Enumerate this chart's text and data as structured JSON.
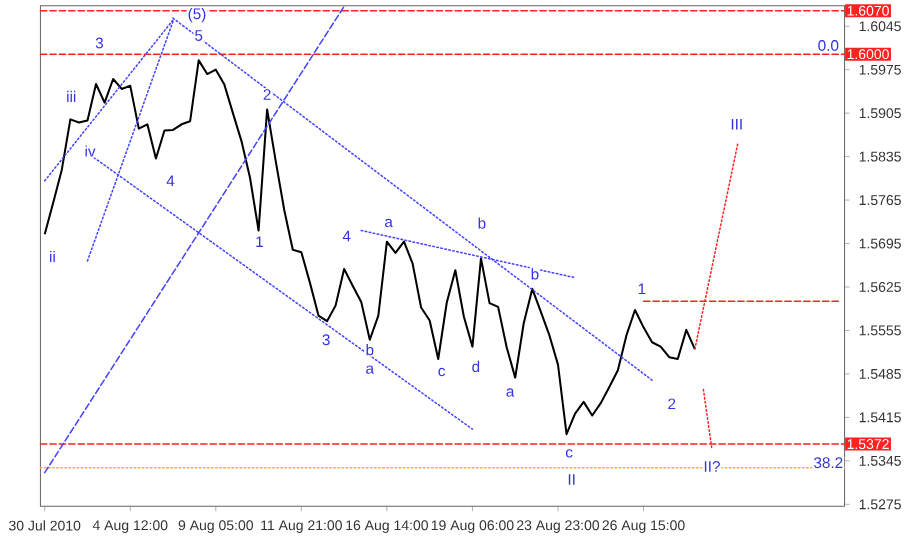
{
  "chart_data": {
    "type": "line",
    "ylim": [
      1.5272,
      1.6078
    ],
    "categories": [
      "30 Jul 2010",
      null,
      null,
      null,
      null,
      null,
      null,
      null,
      null,
      null,
      "4 Aug 12:00",
      null,
      null,
      null,
      null,
      null,
      null,
      null,
      null,
      null,
      "9 Aug 05:00",
      null,
      null,
      null,
      null,
      null,
      null,
      null,
      null,
      null,
      "11 Aug 21:00",
      null,
      null,
      null,
      null,
      null,
      null,
      null,
      null,
      null,
      "16 Aug 14:00",
      null,
      null,
      null,
      null,
      null,
      null,
      null,
      null,
      null,
      "19 Aug 06:00",
      null,
      null,
      null,
      null,
      null,
      null,
      null,
      null,
      null,
      "23 Aug 23:00",
      null,
      null,
      null,
      null,
      null,
      null,
      null,
      null,
      null,
      "26 Aug 15:00",
      null,
      null,
      null,
      null,
      null,
      null,
      null,
      null,
      null,
      null,
      null,
      null,
      null,
      null,
      null,
      null,
      null,
      null,
      null,
      null,
      null,
      null,
      null
    ],
    "yticks": [
      1.5275,
      1.5345,
      1.5415,
      1.5485,
      1.5555,
      1.5625,
      1.5695,
      1.5765,
      1.5835,
      1.5905,
      1.5975,
      1.6045
    ],
    "series": [
      {
        "color": "#000000",
        "line_style": "solid",
        "values": [
          1.571,
          1.5761,
          1.5814,
          1.5895,
          1.589,
          1.5893,
          1.5952,
          1.5922,
          1.596,
          1.5944,
          1.5949,
          1.588,
          1.5887,
          1.5832,
          1.5877,
          1.5878,
          1.5887,
          1.5892,
          1.599,
          1.5968,
          1.5975,
          1.5951,
          1.5905,
          1.586,
          1.5801,
          1.5716,
          1.5911,
          1.5828,
          1.5749,
          1.5685,
          1.5681,
          1.5632,
          1.5579,
          1.557,
          1.5595,
          1.5654,
          1.5627,
          1.5601,
          1.554,
          1.5579,
          1.5698,
          1.568,
          1.5698,
          1.5663,
          1.5592,
          1.5571,
          1.5509,
          1.56,
          1.5652,
          1.5577,
          1.5529,
          1.5671,
          1.5599,
          1.5593,
          1.5528,
          1.5479,
          1.5567,
          1.5622,
          1.5585,
          1.5547,
          1.55,
          1.5388,
          1.5421,
          1.544,
          1.5418,
          1.5438,
          1.5464,
          1.5491,
          1.5547,
          1.5588,
          1.556,
          1.5536,
          1.5529,
          1.5512,
          1.5509,
          1.5556,
          1.5525,
          null,
          null,
          null,
          null,
          null,
          null,
          null,
          null,
          null,
          null,
          null,
          null,
          null,
          null,
          null,
          null,
          null
        ]
      },
      {
        "color": "#4444ff",
        "line_style": "dashed",
        "values": [
          1.5326,
          null,
          null,
          null,
          null,
          null,
          null,
          null,
          null,
          null,
          null,
          null,
          null,
          null,
          null,
          null,
          null,
          null,
          null,
          null,
          null,
          null,
          null,
          null,
          null,
          null,
          null,
          null,
          null,
          null,
          null,
          null,
          null,
          null,
          null,
          1.6077,
          null,
          null,
          null,
          null,
          null,
          null,
          null,
          null,
          null,
          null,
          null,
          null,
          null,
          null,
          null,
          null,
          null,
          null,
          null,
          null,
          null,
          null,
          null,
          null,
          null,
          null,
          null,
          null,
          null,
          null,
          null,
          null,
          null,
          null,
          null,
          null,
          null,
          null,
          null,
          null,
          null,
          null,
          null,
          null,
          null,
          null,
          null,
          null,
          null,
          null,
          null,
          null,
          null,
          null,
          null,
          null,
          null,
          null
        ]
      },
      {
        "color": "#4444ff",
        "line_style": "dotted",
        "values": [
          1.5796,
          null,
          null,
          null,
          null,
          null,
          null,
          null,
          null,
          null,
          null,
          null,
          null,
          null,
          null,
          1.6055,
          null,
          null,
          null,
          null,
          null,
          null,
          null,
          null,
          null,
          null,
          null,
          null,
          null,
          null,
          null,
          null,
          null,
          null,
          null,
          null,
          null,
          null,
          null,
          null,
          null,
          null,
          null,
          null,
          null,
          null,
          null,
          null,
          null,
          null,
          null,
          null,
          null,
          null,
          null,
          null,
          null,
          null,
          null,
          null,
          null,
          null,
          null,
          null,
          null,
          null,
          null,
          null,
          null,
          null,
          null,
          null,
          null,
          null,
          null,
          null,
          null,
          null,
          null,
          null,
          null,
          null,
          null,
          null,
          null,
          null,
          null,
          null,
          null,
          null,
          null,
          null,
          null,
          null
        ]
      },
      {
        "color": "#4444ff",
        "line_style": "dotted",
        "values": [
          null,
          null,
          null,
          null,
          null,
          1.5667,
          null,
          null,
          null,
          null,
          null,
          null,
          null,
          null,
          null,
          1.6053,
          null,
          null,
          null,
          null,
          null,
          null,
          null,
          null,
          null,
          null,
          null,
          null,
          null,
          null,
          null,
          null,
          null,
          null,
          null,
          null,
          null,
          null,
          null,
          null,
          null,
          null,
          null,
          null,
          null,
          null,
          null,
          null,
          null,
          null,
          null,
          null,
          null,
          null,
          null,
          null,
          null,
          null,
          null,
          null,
          null,
          null,
          null,
          null,
          null,
          null,
          null,
          null,
          null,
          null,
          null,
          null,
          null,
          null,
          null,
          null,
          null,
          null,
          null,
          null,
          null,
          null,
          null,
          null,
          null,
          null,
          null,
          null,
          null,
          null,
          null,
          null,
          null,
          null
        ]
      },
      {
        "color": "#4444ff",
        "line_style": "dotted",
        "values": [
          null,
          null,
          null,
          null,
          null,
          1.5841,
          null,
          null,
          null,
          null,
          null,
          null,
          null,
          null,
          null,
          null,
          null,
          null,
          null,
          null,
          null,
          null,
          null,
          null,
          null,
          null,
          null,
          null,
          null,
          null,
          null,
          null,
          null,
          null,
          null,
          null,
          null,
          null,
          null,
          null,
          null,
          null,
          null,
          null,
          null,
          null,
          null,
          null,
          null,
          null,
          1.5396,
          null,
          null,
          null,
          null,
          null,
          null,
          null,
          null,
          null,
          null,
          null,
          null,
          null,
          null,
          null,
          null,
          null,
          null,
          null,
          null,
          null,
          null,
          null,
          null,
          null,
          null,
          null,
          null,
          null,
          null,
          null,
          null,
          null,
          null,
          null,
          null,
          null,
          null,
          null,
          null,
          null,
          null,
          null
        ]
      },
      {
        "color": "#4444ff",
        "line_style": "dotted",
        "values": [
          null,
          null,
          null,
          null,
          null,
          null,
          null,
          null,
          null,
          null,
          null,
          null,
          null,
          null,
          null,
          1.6058,
          null,
          null,
          null,
          null,
          null,
          null,
          null,
          null,
          null,
          null,
          null,
          null,
          null,
          null,
          null,
          null,
          null,
          null,
          null,
          null,
          null,
          null,
          null,
          null,
          null,
          null,
          null,
          null,
          null,
          null,
          null,
          null,
          null,
          null,
          null,
          null,
          null,
          null,
          null,
          null,
          null,
          null,
          null,
          null,
          null,
          null,
          null,
          null,
          null,
          null,
          null,
          null,
          null,
          null,
          null,
          1.5475,
          null,
          null,
          null,
          null,
          null,
          null,
          null,
          null,
          null,
          null,
          null,
          null,
          null,
          null,
          null,
          null,
          null,
          null,
          null,
          null,
          null,
          null
        ]
      },
      {
        "color": "#4444ff",
        "line_style": "dotted",
        "values": [
          null,
          null,
          null,
          null,
          null,
          null,
          null,
          null,
          null,
          null,
          null,
          null,
          null,
          null,
          null,
          null,
          null,
          null,
          null,
          null,
          null,
          null,
          null,
          null,
          null,
          null,
          null,
          null,
          null,
          null,
          null,
          null,
          null,
          null,
          null,
          null,
          null,
          1.5716,
          null,
          null,
          null,
          null,
          null,
          null,
          null,
          null,
          null,
          null,
          null,
          null,
          null,
          null,
          null,
          null,
          null,
          null,
          null,
          null,
          null,
          null,
          null,
          null,
          1.564,
          null,
          null,
          null,
          null,
          null,
          null,
          null,
          null,
          null,
          null,
          null,
          null,
          null,
          null,
          null,
          null,
          null,
          null,
          null,
          null,
          null,
          null,
          null,
          null,
          null,
          null,
          null,
          null,
          null,
          null,
          null
        ]
      },
      {
        "color": "#ff2222",
        "line_style": "dashed",
        "values": [
          null,
          null,
          null,
          null,
          null,
          null,
          null,
          null,
          null,
          null,
          null,
          null,
          null,
          null,
          null,
          null,
          null,
          null,
          null,
          null,
          null,
          null,
          null,
          null,
          null,
          null,
          null,
          null,
          null,
          null,
          null,
          null,
          null,
          null,
          null,
          null,
          null,
          null,
          null,
          null,
          null,
          null,
          null,
          null,
          null,
          null,
          null,
          null,
          null,
          null,
          null,
          null,
          null,
          null,
          null,
          null,
          null,
          null,
          null,
          null,
          null,
          null,
          null,
          null,
          null,
          null,
          null,
          null,
          null,
          null,
          1.5602,
          null,
          null,
          null,
          null,
          null,
          null,
          null,
          null,
          null,
          null,
          null,
          null,
          null,
          null,
          null,
          null,
          null,
          null,
          null,
          null,
          null,
          null,
          1.5602
        ]
      },
      {
        "color": "#ff2222",
        "line_style": "dotted",
        "values": [
          null,
          null,
          null,
          null,
          null,
          null,
          null,
          null,
          null,
          null,
          null,
          null,
          null,
          null,
          null,
          null,
          null,
          null,
          null,
          null,
          null,
          null,
          null,
          null,
          null,
          null,
          null,
          null,
          null,
          null,
          null,
          null,
          null,
          null,
          null,
          null,
          null,
          null,
          null,
          null,
          null,
          null,
          null,
          null,
          null,
          null,
          null,
          null,
          null,
          null,
          null,
          null,
          null,
          null,
          null,
          null,
          null,
          null,
          null,
          null,
          null,
          null,
          null,
          null,
          null,
          null,
          null,
          null,
          null,
          null,
          null,
          null,
          null,
          null,
          null,
          null,
          1.5525,
          null,
          null,
          null,
          null,
          1.5855,
          null,
          null,
          null,
          null,
          null,
          null,
          null,
          null,
          null,
          null,
          null,
          null
        ]
      },
      {
        "color": "#ff2222",
        "line_style": "dotted",
        "values": [
          null,
          null,
          null,
          null,
          null,
          null,
          null,
          null,
          null,
          null,
          null,
          null,
          null,
          null,
          null,
          null,
          null,
          null,
          null,
          null,
          null,
          null,
          null,
          null,
          null,
          null,
          null,
          null,
          null,
          null,
          null,
          null,
          null,
          null,
          null,
          null,
          null,
          null,
          null,
          null,
          null,
          null,
          null,
          null,
          null,
          null,
          null,
          null,
          null,
          null,
          null,
          null,
          null,
          null,
          null,
          null,
          null,
          null,
          null,
          null,
          null,
          null,
          null,
          null,
          null,
          null,
          null,
          null,
          null,
          null,
          null,
          null,
          null,
          null,
          null,
          null,
          null,
          1.546,
          1.5363,
          null,
          null,
          null,
          null,
          null,
          null,
          null,
          null,
          null,
          null,
          null,
          null,
          null,
          null,
          null
        ]
      }
    ],
    "ref_lines": [
      {
        "axis": "y",
        "value": 1.607,
        "label": "1.6070",
        "color": "#ff2222",
        "line_style": "dashed"
      },
      {
        "axis": "y",
        "value": 1.6,
        "label": "1.6000",
        "color": "#ff2222",
        "line_style": "dashed"
      },
      {
        "axis": "y",
        "value": 1.5372,
        "label": "1.5372",
        "color": "#ff2222",
        "line_style": "dashed"
      },
      {
        "axis": "y",
        "value": 1.5334,
        "color": "#ffaa44",
        "line_style": "dotted"
      }
    ],
    "annotations": [
      "(5)",
      "5",
      "3",
      "iii",
      "iv",
      "4",
      "ii",
      "1",
      "2",
      "3",
      "4",
      "a",
      "b",
      "a",
      "c",
      "b",
      "b",
      "d",
      "a",
      "c",
      "II",
      "1",
      "2",
      "III",
      "II?",
      "0.0",
      "38.2"
    ]
  }
}
